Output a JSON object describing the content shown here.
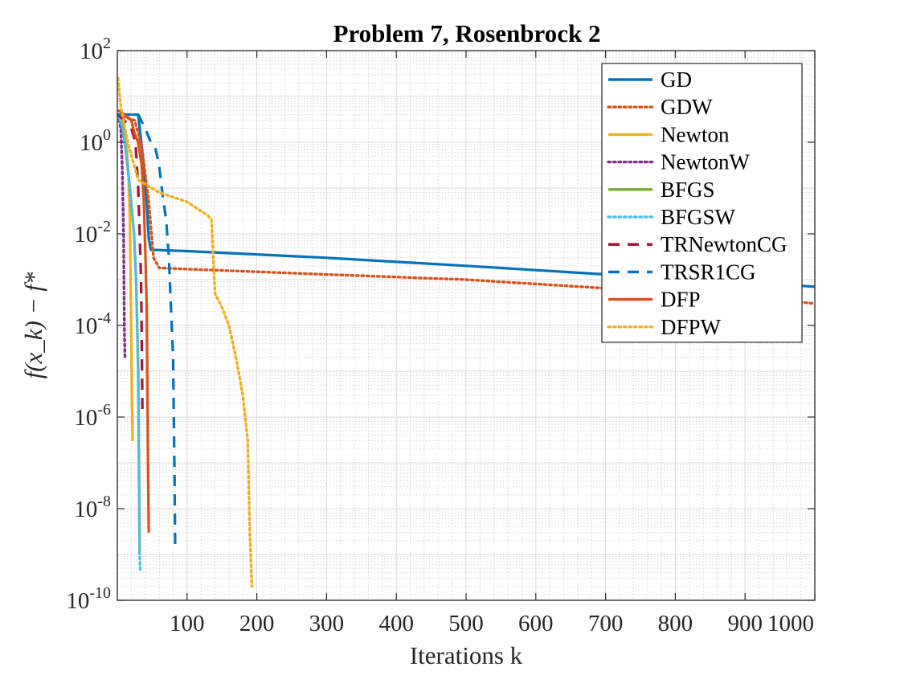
{
  "chart_data": {
    "type": "line",
    "title": "Problem 7, Rosenbrock 2",
    "xlabel": "Iterations k",
    "ylabel": "f(x_k) − f*",
    "xlim": [
      0,
      1000
    ],
    "ylim": [
      1e-10,
      100
    ],
    "yscale": "log",
    "grid": true,
    "minor_grid": true,
    "legend_position": "top-right",
    "x_ticks": [
      100,
      200,
      300,
      400,
      500,
      600,
      700,
      800,
      900,
      1000
    ],
    "y_ticks": [
      {
        "value": 100,
        "mantissa": "10",
        "exp": "2"
      },
      {
        "value": 1,
        "mantissa": "10",
        "exp": "0"
      },
      {
        "value": 0.01,
        "mantissa": "10",
        "exp": "-2"
      },
      {
        "value": 0.0001,
        "mantissa": "10",
        "exp": "-4"
      },
      {
        "value": 1e-06,
        "mantissa": "10",
        "exp": "-6"
      },
      {
        "value": 1e-08,
        "mantissa": "10",
        "exp": "-8"
      },
      {
        "value": 1e-10,
        "mantissa": "10",
        "exp": "-10"
      }
    ],
    "series": [
      {
        "name": "GD",
        "color": "#0072BD",
        "style": "solid",
        "points": [
          [
            1,
            4
          ],
          [
            10,
            4
          ],
          [
            30,
            4
          ],
          [
            38,
            0.3
          ],
          [
            42,
            0.05
          ],
          [
            45,
            0.008
          ],
          [
            48,
            0.0045
          ],
          [
            100,
            0.0042
          ],
          [
            300,
            0.003
          ],
          [
            500,
            0.002
          ],
          [
            700,
            0.0013
          ],
          [
            900,
            0.00088
          ],
          [
            1000,
            0.0007
          ]
        ]
      },
      {
        "name": "GDW",
        "color": "#D95319",
        "style": "dotted",
        "points": [
          [
            1,
            4
          ],
          [
            25,
            3
          ],
          [
            35,
            0.8
          ],
          [
            45,
            0.05
          ],
          [
            52,
            0.003
          ],
          [
            60,
            0.0018
          ],
          [
            100,
            0.0017
          ],
          [
            300,
            0.0013
          ],
          [
            500,
            0.001
          ],
          [
            700,
            0.00065
          ],
          [
            900,
            0.00042
          ],
          [
            1000,
            0.0003
          ]
        ]
      },
      {
        "name": "Newton",
        "color": "#EDB120",
        "style": "solid",
        "points": [
          [
            1,
            4
          ],
          [
            8,
            3
          ],
          [
            13,
            1
          ],
          [
            16,
            0.2
          ],
          [
            18,
            0.02
          ],
          [
            19,
            0.001
          ],
          [
            20,
            5e-05
          ],
          [
            21,
            2e-06
          ],
          [
            22,
            3e-07
          ]
        ]
      },
      {
        "name": "NewtonW",
        "color": "#7E2F8E",
        "style": "dotted",
        "points": [
          [
            1,
            4
          ],
          [
            5,
            2
          ],
          [
            7,
            0.3
          ],
          [
            9,
            0.01
          ],
          [
            10,
            0.0001
          ],
          [
            11,
            2e-05
          ]
        ]
      },
      {
        "name": "BFGS",
        "color": "#77AC30",
        "style": "solid",
        "points": [
          [
            1,
            4
          ],
          [
            8,
            2
          ],
          [
            13,
            0.5
          ],
          [
            18,
            0.1
          ],
          [
            24,
            0.01
          ],
          [
            27,
            0.001
          ],
          [
            30,
            1e-05
          ],
          [
            31,
            1e-07
          ],
          [
            32,
            1e-09
          ]
        ]
      },
      {
        "name": "BFGSW",
        "color": "#4DBEEE",
        "style": "dotted",
        "points": [
          [
            1,
            4
          ],
          [
            8,
            2
          ],
          [
            13,
            0.6
          ],
          [
            18,
            0.1
          ],
          [
            24,
            0.01
          ],
          [
            27,
            0.001
          ],
          [
            30,
            1e-05
          ],
          [
            31,
            1e-07
          ],
          [
            32,
            1e-09
          ],
          [
            33,
            4e-10
          ]
        ]
      },
      {
        "name": "TRNewtonCG",
        "color": "#A2142F",
        "style": "dashed",
        "points": [
          [
            1,
            4
          ],
          [
            10,
            3
          ],
          [
            20,
            2
          ],
          [
            26,
            1
          ],
          [
            30,
            0.1
          ],
          [
            32,
            0.01
          ],
          [
            34,
            0.001
          ],
          [
            35,
            5e-05
          ],
          [
            36,
            1.5e-06
          ]
        ]
      },
      {
        "name": "TRSR1CG",
        "color": "#0072BD",
        "style": "dashed",
        "points": [
          [
            1,
            4
          ],
          [
            10,
            4
          ],
          [
            30,
            4
          ],
          [
            40,
            2
          ],
          [
            48,
            1
          ],
          [
            55,
            0.7
          ],
          [
            60,
            0.3
          ],
          [
            65,
            0.07
          ],
          [
            70,
            0.02
          ],
          [
            74,
            0.003
          ],
          [
            76,
            0.0005
          ],
          [
            80,
            2e-05
          ],
          [
            82,
            5e-08
          ],
          [
            83,
            1.5e-09
          ]
        ]
      },
      {
        "name": "DFP",
        "color": "#D95319",
        "style": "solid",
        "points": [
          [
            1,
            5
          ],
          [
            10,
            4
          ],
          [
            20,
            3
          ],
          [
            25,
            1.5
          ],
          [
            30,
            1
          ],
          [
            35,
            0.3
          ],
          [
            38,
            0.05
          ],
          [
            40,
            0.005
          ],
          [
            42,
            0.0003
          ],
          [
            43,
            1e-05
          ],
          [
            44,
            1e-07
          ],
          [
            45,
            3e-09
          ]
        ]
      },
      {
        "name": "DFPW",
        "color": "#EDB120",
        "style": "dotted",
        "points": [
          [
            1,
            25
          ],
          [
            5,
            6
          ],
          [
            15,
            1
          ],
          [
            30,
            0.15
          ],
          [
            60,
            0.08
          ],
          [
            100,
            0.05
          ],
          [
            130,
            0.025
          ],
          [
            135,
            0.02
          ],
          [
            140,
            0.0005
          ],
          [
            150,
            0.00025
          ],
          [
            160,
            0.0001
          ],
          [
            170,
            2e-05
          ],
          [
            180,
            3e-06
          ],
          [
            187,
            3e-07
          ],
          [
            190,
            3e-09
          ],
          [
            193,
            2e-10
          ]
        ]
      }
    ]
  }
}
